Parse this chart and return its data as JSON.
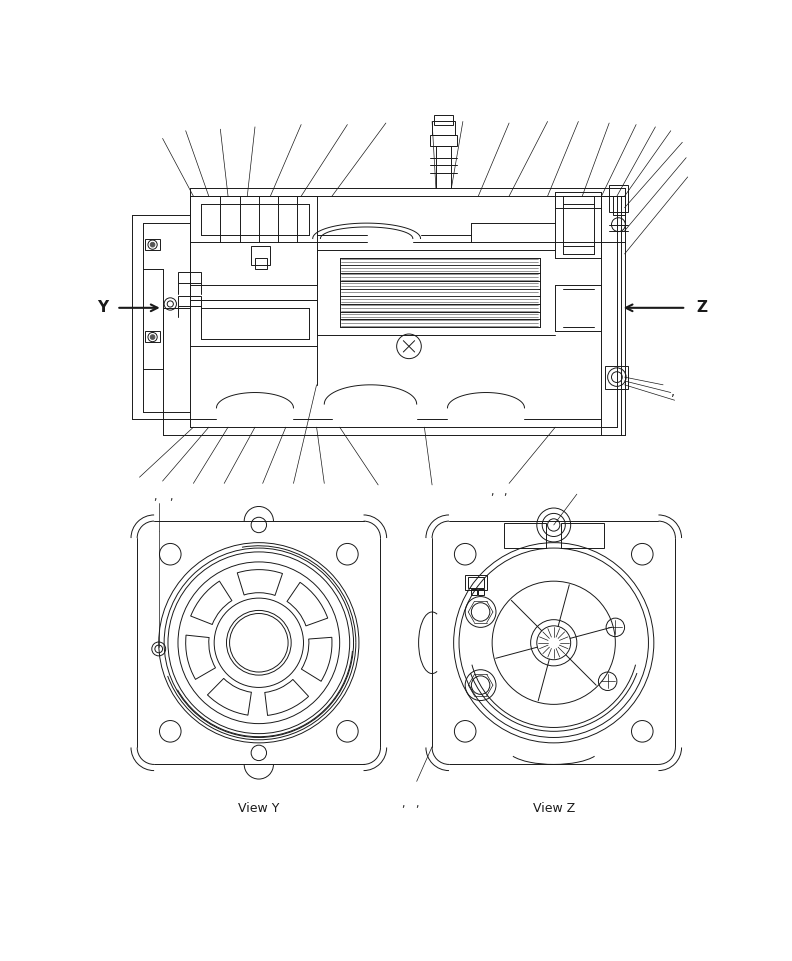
{
  "bg_color": "#ffffff",
  "line_color": "#1a1a1a",
  "lw": 0.7,
  "view_y_label": "View Y",
  "view_z_label": "View Z",
  "fig_width": 7.92,
  "fig_height": 9.61
}
